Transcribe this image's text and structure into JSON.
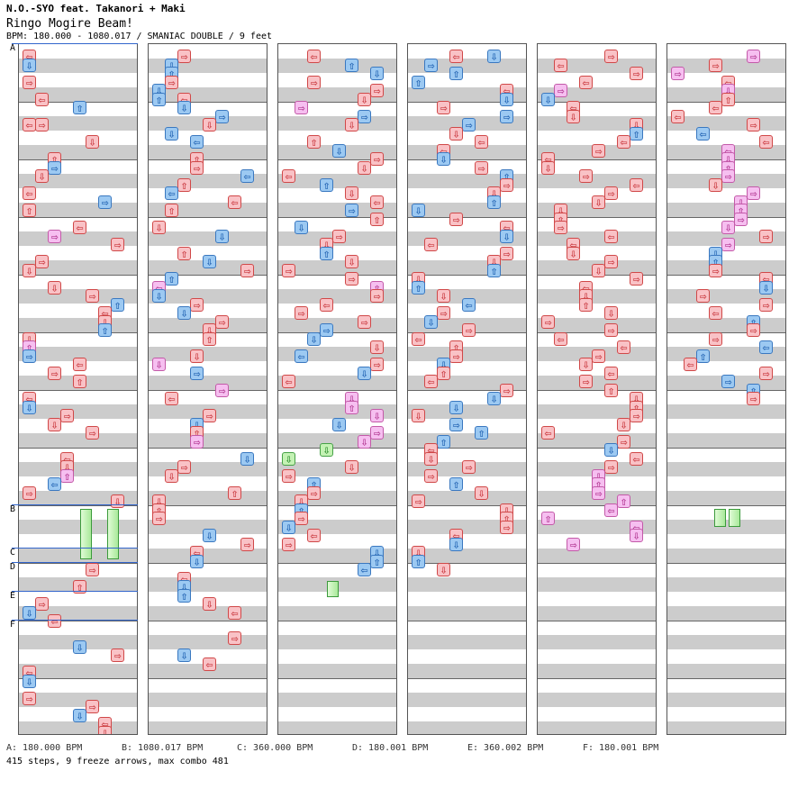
{
  "header": {
    "artist": "N.O.-SYO feat. Takanori + Maki",
    "title": "Ringo Mogire Beam!",
    "info": "BPM: 180.000 - 1080.017 / SMANIAC DOUBLE / 9 feet"
  },
  "bpm_markers": [
    "A",
    "B",
    "C",
    "D",
    "E",
    "F"
  ],
  "legend": [
    "A: 180.000 BPM",
    "B: 1080.017 BPM",
    "C: 360.000 BPM",
    "D: 180.001 BPM",
    "E: 360.002 BPM",
    "F: 180.001 BPM"
  ],
  "stats": "415 steps, 9 freeze arrows, max combo 481",
  "colors": {
    "quarter": "#f9c2c6",
    "eighth": "#9cc9f2",
    "other": "#f6bff0",
    "freeze": "#c4f2b4",
    "bpm_line": "#3366cc"
  },
  "icons": {
    "L": "left-arrow-icon",
    "D": "down-arrow-icon",
    "U": "up-arrow-icon",
    "R": "right-arrow-icon"
  },
  "columns": [
    [
      [
        0,
        "L",
        "r"
      ],
      [
        1,
        "D",
        "b"
      ],
      [
        3,
        "R",
        "r"
      ],
      [
        5,
        "L",
        "r"
      ],
      [
        6,
        "U",
        "b"
      ],
      [
        8,
        "R",
        "r"
      ],
      [
        8,
        "L",
        "r"
      ],
      [
        10,
        "D",
        "r"
      ],
      [
        12,
        "U",
        "r"
      ],
      [
        13,
        "R",
        "b"
      ],
      [
        14,
        "D",
        "r"
      ],
      [
        16,
        "L",
        "r"
      ],
      [
        17,
        "R",
        "b"
      ],
      [
        18,
        "U",
        "r"
      ],
      [
        20,
        "L",
        "r"
      ],
      [
        21,
        "R",
        "p"
      ],
      [
        22,
        "R",
        "r"
      ],
      [
        24,
        "R",
        "r"
      ],
      [
        25,
        "D",
        "r"
      ],
      [
        27,
        "D",
        "r"
      ],
      [
        28,
        "R",
        "r"
      ],
      [
        29,
        "U",
        "b"
      ],
      [
        30,
        "L",
        "r"
      ],
      [
        31,
        "D",
        "r"
      ],
      [
        32,
        "U",
        "b"
      ],
      [
        33,
        "D",
        "r"
      ],
      [
        34,
        "U",
        "p"
      ],
      [
        35,
        "R",
        "b"
      ],
      [
        36,
        "L",
        "r"
      ],
      [
        37,
        "R",
        "r"
      ],
      [
        38,
        "U",
        "r"
      ],
      [
        40,
        "L",
        "r"
      ],
      [
        41,
        "D",
        "b"
      ],
      [
        42,
        "R",
        "r"
      ],
      [
        43,
        "D",
        "r"
      ],
      [
        44,
        "R",
        "r"
      ],
      [
        47,
        "L",
        "r"
      ],
      [
        48,
        "D",
        "r"
      ],
      [
        49,
        "U",
        "p"
      ],
      [
        50,
        "L",
        "b"
      ],
      [
        51,
        "R",
        "r"
      ],
      [
        52,
        "D",
        "r"
      ],
      [
        60,
        "R",
        "r"
      ],
      [
        62,
        "U",
        "r"
      ],
      [
        64,
        "R",
        "r"
      ],
      [
        65,
        "D",
        "b"
      ],
      [
        66,
        "L",
        "r"
      ],
      [
        69,
        "D",
        "b"
      ],
      [
        70,
        "R",
        "r"
      ],
      [
        72,
        "L",
        "r"
      ],
      [
        73,
        "D",
        "b"
      ],
      [
        75,
        "R",
        "r"
      ],
      [
        76,
        "R",
        "r"
      ],
      [
        77,
        "D",
        "b"
      ],
      [
        78,
        "L",
        "r"
      ],
      [
        79,
        "D",
        "r"
      ]
    ],
    [
      [
        0,
        "R",
        "r"
      ],
      [
        1,
        "D",
        "b"
      ],
      [
        2,
        "U",
        "b"
      ],
      [
        3,
        "R",
        "r"
      ],
      [
        4,
        "D",
        "b"
      ],
      [
        5,
        "U",
        "b"
      ],
      [
        5,
        "L",
        "r"
      ],
      [
        6,
        "D",
        "b"
      ],
      [
        7,
        "R",
        "b"
      ],
      [
        8,
        "D",
        "r"
      ],
      [
        9,
        "D",
        "b"
      ],
      [
        10,
        "L",
        "b"
      ],
      [
        12,
        "U",
        "r"
      ],
      [
        13,
        "R",
        "r"
      ],
      [
        14,
        "L",
        "b"
      ],
      [
        15,
        "U",
        "r"
      ],
      [
        16,
        "L",
        "b"
      ],
      [
        17,
        "L",
        "r"
      ],
      [
        18,
        "U",
        "r"
      ],
      [
        20,
        "D",
        "r"
      ],
      [
        21,
        "D",
        "b"
      ],
      [
        23,
        "U",
        "r"
      ],
      [
        24,
        "D",
        "b"
      ],
      [
        25,
        "R",
        "r"
      ],
      [
        26,
        "U",
        "b"
      ],
      [
        27,
        "L",
        "p"
      ],
      [
        28,
        "D",
        "b"
      ],
      [
        29,
        "R",
        "r"
      ],
      [
        30,
        "D",
        "b"
      ],
      [
        31,
        "R",
        "r"
      ],
      [
        32,
        "D",
        "r"
      ],
      [
        33,
        "U",
        "r"
      ],
      [
        35,
        "D",
        "r"
      ],
      [
        36,
        "D",
        "p"
      ],
      [
        37,
        "R",
        "b"
      ],
      [
        39,
        "R",
        "p"
      ],
      [
        40,
        "L",
        "r"
      ],
      [
        42,
        "R",
        "r"
      ],
      [
        43,
        "D",
        "b"
      ],
      [
        44,
        "U",
        "r"
      ],
      [
        45,
        "R",
        "p"
      ],
      [
        47,
        "D",
        "b"
      ],
      [
        48,
        "R",
        "r"
      ],
      [
        49,
        "D",
        "r"
      ],
      [
        51,
        "U",
        "r"
      ],
      [
        52,
        "D",
        "r"
      ],
      [
        53,
        "U",
        "r"
      ],
      [
        54,
        "R",
        "r"
      ],
      [
        56,
        "D",
        "b"
      ],
      [
        57,
        "R",
        "r"
      ],
      [
        58,
        "L",
        "r"
      ],
      [
        59,
        "D",
        "b"
      ],
      [
        61,
        "L",
        "r"
      ],
      [
        62,
        "D",
        "b"
      ],
      [
        63,
        "U",
        "b"
      ],
      [
        64,
        "D",
        "r"
      ],
      [
        65,
        "L",
        "r"
      ],
      [
        68,
        "R",
        "r"
      ],
      [
        70,
        "D",
        "b"
      ],
      [
        71,
        "L",
        "r"
      ]
    ],
    [
      [
        0,
        "L",
        "r"
      ],
      [
        1,
        "U",
        "b"
      ],
      [
        2,
        "D",
        "b"
      ],
      [
        3,
        "R",
        "r"
      ],
      [
        4,
        "R",
        "r"
      ],
      [
        5,
        "D",
        "r"
      ],
      [
        6,
        "R",
        "p"
      ],
      [
        7,
        "R",
        "b"
      ],
      [
        8,
        "D",
        "r"
      ],
      [
        10,
        "U",
        "r"
      ],
      [
        11,
        "D",
        "b"
      ],
      [
        12,
        "R",
        "r"
      ],
      [
        13,
        "D",
        "r"
      ],
      [
        14,
        "L",
        "r"
      ],
      [
        15,
        "U",
        "b"
      ],
      [
        16,
        "D",
        "r"
      ],
      [
        17,
        "L",
        "r"
      ],
      [
        18,
        "R",
        "b"
      ],
      [
        19,
        "U",
        "r"
      ],
      [
        20,
        "D",
        "b"
      ],
      [
        21,
        "R",
        "r"
      ],
      [
        22,
        "D",
        "r"
      ],
      [
        23,
        "U",
        "b"
      ],
      [
        24,
        "D",
        "r"
      ],
      [
        25,
        "R",
        "r"
      ],
      [
        26,
        "R",
        "r"
      ],
      [
        27,
        "U",
        "p"
      ],
      [
        28,
        "R",
        "r"
      ],
      [
        29,
        "L",
        "r"
      ],
      [
        30,
        "R",
        "r"
      ],
      [
        31,
        "R",
        "r"
      ],
      [
        32,
        "R",
        "b"
      ],
      [
        33,
        "D",
        "b"
      ],
      [
        34,
        "D",
        "r"
      ],
      [
        35,
        "L",
        "b"
      ],
      [
        36,
        "R",
        "r"
      ],
      [
        37,
        "D",
        "b"
      ],
      [
        38,
        "L",
        "r"
      ],
      [
        40,
        "D",
        "p"
      ],
      [
        41,
        "U",
        "p"
      ],
      [
        42,
        "D",
        "p"
      ],
      [
        43,
        "D",
        "b"
      ],
      [
        44,
        "R",
        "p"
      ],
      [
        45,
        "D",
        "p"
      ],
      [
        46,
        "D",
        "g"
      ],
      [
        47,
        "D",
        "g"
      ],
      [
        48,
        "D",
        "r"
      ],
      [
        49,
        "R",
        "r"
      ],
      [
        50,
        "U",
        "b"
      ],
      [
        51,
        "R",
        "r"
      ],
      [
        52,
        "D",
        "r"
      ],
      [
        53,
        "U",
        "b"
      ],
      [
        54,
        "R",
        "r"
      ],
      [
        55,
        "D",
        "b"
      ],
      [
        56,
        "L",
        "r"
      ],
      [
        57,
        "R",
        "r"
      ],
      [
        58,
        "D",
        "b"
      ],
      [
        59,
        "U",
        "b"
      ],
      [
        60,
        "L",
        "b"
      ]
    ],
    [
      [
        0,
        "D",
        "b"
      ],
      [
        0,
        "L",
        "r"
      ],
      [
        1,
        "R",
        "b"
      ],
      [
        2,
        "U",
        "b"
      ],
      [
        3,
        "U",
        "b"
      ],
      [
        4,
        "L",
        "r"
      ],
      [
        5,
        "D",
        "b"
      ],
      [
        6,
        "R",
        "r"
      ],
      [
        7,
        "R",
        "b"
      ],
      [
        8,
        "R",
        "b"
      ],
      [
        9,
        "D",
        "r"
      ],
      [
        10,
        "L",
        "r"
      ],
      [
        11,
        "L",
        "r"
      ],
      [
        12,
        "D",
        "b"
      ],
      [
        13,
        "R",
        "r"
      ],
      [
        14,
        "U",
        "b"
      ],
      [
        15,
        "R",
        "r"
      ],
      [
        16,
        "D",
        "r"
      ],
      [
        17,
        "U",
        "b"
      ],
      [
        18,
        "D",
        "b"
      ],
      [
        19,
        "R",
        "r"
      ],
      [
        20,
        "L",
        "r"
      ],
      [
        21,
        "D",
        "b"
      ],
      [
        22,
        "L",
        "r"
      ],
      [
        23,
        "R",
        "r"
      ],
      [
        24,
        "D",
        "r"
      ],
      [
        25,
        "U",
        "b"
      ],
      [
        26,
        "D",
        "r"
      ],
      [
        27,
        "U",
        "b"
      ],
      [
        28,
        "D",
        "r"
      ],
      [
        29,
        "L",
        "b"
      ],
      [
        30,
        "R",
        "r"
      ],
      [
        31,
        "D",
        "b"
      ],
      [
        32,
        "R",
        "r"
      ],
      [
        33,
        "L",
        "r"
      ],
      [
        34,
        "U",
        "r"
      ],
      [
        35,
        "R",
        "r"
      ],
      [
        36,
        "D",
        "b"
      ],
      [
        37,
        "U",
        "r"
      ],
      [
        38,
        "L",
        "r"
      ],
      [
        39,
        "R",
        "r"
      ],
      [
        40,
        "D",
        "b"
      ],
      [
        41,
        "D",
        "b"
      ],
      [
        42,
        "D",
        "r"
      ],
      [
        43,
        "R",
        "b"
      ],
      [
        44,
        "U",
        "b"
      ],
      [
        45,
        "U",
        "b"
      ],
      [
        46,
        "L",
        "r"
      ],
      [
        47,
        "D",
        "r"
      ],
      [
        48,
        "R",
        "r"
      ],
      [
        49,
        "R",
        "r"
      ],
      [
        50,
        "U",
        "b"
      ],
      [
        51,
        "D",
        "r"
      ],
      [
        52,
        "R",
        "r"
      ],
      [
        53,
        "D",
        "r"
      ],
      [
        54,
        "U",
        "r"
      ],
      [
        55,
        "R",
        "r"
      ],
      [
        56,
        "L",
        "r"
      ],
      [
        57,
        "D",
        "b"
      ],
      [
        58,
        "D",
        "r"
      ],
      [
        59,
        "U",
        "b"
      ],
      [
        60,
        "D",
        "r"
      ]
    ],
    [
      [
        0,
        "R",
        "r"
      ],
      [
        1,
        "L",
        "r"
      ],
      [
        2,
        "R",
        "r"
      ],
      [
        3,
        "L",
        "r"
      ],
      [
        4,
        "R",
        "p"
      ],
      [
        5,
        "D",
        "b"
      ],
      [
        6,
        "L",
        "r"
      ],
      [
        7,
        "D",
        "r"
      ],
      [
        8,
        "D",
        "r"
      ],
      [
        9,
        "U",
        "b"
      ],
      [
        10,
        "L",
        "r"
      ],
      [
        11,
        "R",
        "r"
      ],
      [
        12,
        "L",
        "r"
      ],
      [
        13,
        "D",
        "r"
      ],
      [
        14,
        "R",
        "r"
      ],
      [
        15,
        "L",
        "r"
      ],
      [
        16,
        "R",
        "r"
      ],
      [
        17,
        "D",
        "r"
      ],
      [
        18,
        "D",
        "r"
      ],
      [
        19,
        "U",
        "r"
      ],
      [
        20,
        "R",
        "r"
      ],
      [
        21,
        "L",
        "r"
      ],
      [
        22,
        "L",
        "r"
      ],
      [
        23,
        "D",
        "r"
      ],
      [
        24,
        "R",
        "r"
      ],
      [
        25,
        "D",
        "r"
      ],
      [
        26,
        "R",
        "r"
      ],
      [
        27,
        "L",
        "r"
      ],
      [
        28,
        "D",
        "r"
      ],
      [
        29,
        "U",
        "r"
      ],
      [
        30,
        "D",
        "r"
      ],
      [
        31,
        "R",
        "r"
      ],
      [
        32,
        "R",
        "r"
      ],
      [
        33,
        "L",
        "r"
      ],
      [
        34,
        "L",
        "r"
      ],
      [
        35,
        "R",
        "r"
      ],
      [
        36,
        "D",
        "r"
      ],
      [
        37,
        "L",
        "r"
      ],
      [
        38,
        "R",
        "r"
      ],
      [
        39,
        "U",
        "r"
      ],
      [
        40,
        "D",
        "r"
      ],
      [
        41,
        "U",
        "r"
      ],
      [
        42,
        "R",
        "r"
      ],
      [
        43,
        "D",
        "r"
      ],
      [
        44,
        "L",
        "r"
      ],
      [
        45,
        "R",
        "r"
      ],
      [
        46,
        "D",
        "b"
      ],
      [
        47,
        "L",
        "r"
      ],
      [
        48,
        "R",
        "r"
      ],
      [
        49,
        "D",
        "p"
      ],
      [
        50,
        "U",
        "p"
      ],
      [
        51,
        "R",
        "p"
      ],
      [
        52,
        "U",
        "p"
      ],
      [
        53,
        "L",
        "p"
      ],
      [
        54,
        "U",
        "p"
      ],
      [
        55,
        "L",
        "p"
      ],
      [
        56,
        "D",
        "p"
      ],
      [
        57,
        "R",
        "p"
      ]
    ],
    [
      [
        0,
        "R",
        "p"
      ],
      [
        1,
        "R",
        "r"
      ],
      [
        2,
        "R",
        "p"
      ],
      [
        3,
        "L",
        "r"
      ],
      [
        4,
        "D",
        "p"
      ],
      [
        5,
        "U",
        "r"
      ],
      [
        6,
        "L",
        "r"
      ],
      [
        7,
        "L",
        "r"
      ],
      [
        8,
        "R",
        "r"
      ],
      [
        9,
        "L",
        "b"
      ],
      [
        10,
        "L",
        "r"
      ],
      [
        11,
        "L",
        "p"
      ],
      [
        12,
        "D",
        "p"
      ],
      [
        13,
        "U",
        "p"
      ],
      [
        14,
        "R",
        "p"
      ],
      [
        15,
        "D",
        "r"
      ],
      [
        16,
        "R",
        "p"
      ],
      [
        17,
        "D",
        "p"
      ],
      [
        18,
        "U",
        "p"
      ],
      [
        19,
        "R",
        "p"
      ],
      [
        20,
        "D",
        "p"
      ],
      [
        21,
        "R",
        "r"
      ],
      [
        22,
        "R",
        "p"
      ],
      [
        23,
        "D",
        "b"
      ],
      [
        24,
        "U",
        "b"
      ],
      [
        25,
        "R",
        "r"
      ],
      [
        26,
        "L",
        "r"
      ],
      [
        27,
        "D",
        "b"
      ],
      [
        28,
        "R",
        "r"
      ],
      [
        29,
        "R",
        "r"
      ],
      [
        30,
        "L",
        "r"
      ],
      [
        31,
        "U",
        "b"
      ],
      [
        32,
        "R",
        "r"
      ],
      [
        33,
        "R",
        "r"
      ],
      [
        34,
        "L",
        "b"
      ],
      [
        35,
        "U",
        "b"
      ],
      [
        36,
        "L",
        "r"
      ],
      [
        37,
        "R",
        "r"
      ],
      [
        38,
        "R",
        "b"
      ],
      [
        39,
        "U",
        "b"
      ],
      [
        40,
        "R",
        "r"
      ]
    ]
  ]
}
